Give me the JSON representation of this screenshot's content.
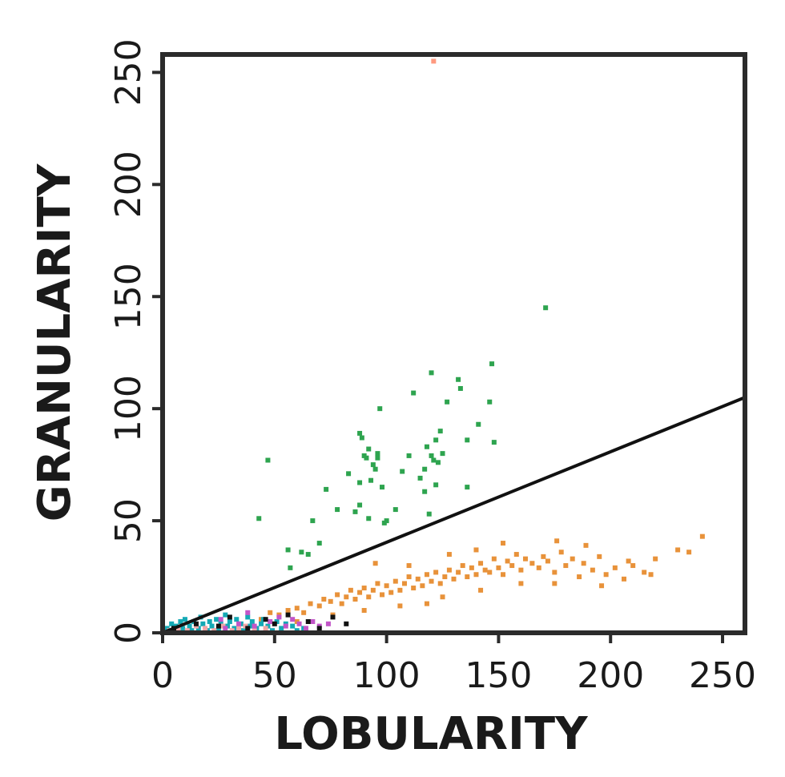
{
  "chart_data": {
    "type": "scatter",
    "title": "",
    "xlabel": "LOBULARITY",
    "ylabel": "GRANULARITY",
    "xlim": [
      0,
      260
    ],
    "ylim": [
      0,
      258
    ],
    "xticks": [
      0,
      50,
      100,
      150,
      200,
      250
    ],
    "yticks": [
      0,
      50,
      100,
      150,
      200,
      250
    ],
    "grid": false,
    "legend": "none",
    "reference_line": {
      "x": [
        0,
        260
      ],
      "y": [
        0,
        105
      ],
      "color": "#111111"
    },
    "series": [
      {
        "color": "#2ea44f",
        "points": [
          [
            47,
            77
          ],
          [
            43,
            51
          ],
          [
            56,
            37
          ],
          [
            57,
            29
          ],
          [
            62,
            36
          ],
          [
            65,
            35
          ],
          [
            67,
            50
          ],
          [
            70,
            40
          ],
          [
            73,
            64
          ],
          [
            78,
            55
          ],
          [
            83,
            71
          ],
          [
            86,
            54
          ],
          [
            88,
            57
          ],
          [
            88,
            67
          ],
          [
            88,
            89
          ],
          [
            89,
            87
          ],
          [
            90,
            79
          ],
          [
            91,
            78
          ],
          [
            92,
            51
          ],
          [
            92,
            82
          ],
          [
            93,
            68
          ],
          [
            94,
            75
          ],
          [
            95,
            73
          ],
          [
            96,
            78
          ],
          [
            96,
            80
          ],
          [
            97,
            100
          ],
          [
            98,
            65
          ],
          [
            99,
            49
          ],
          [
            100,
            50
          ],
          [
            104,
            55
          ],
          [
            107,
            72
          ],
          [
            110,
            79
          ],
          [
            112,
            107
          ],
          [
            115,
            69
          ],
          [
            117,
            63
          ],
          [
            117,
            73
          ],
          [
            118,
            83
          ],
          [
            119,
            53
          ],
          [
            120,
            116
          ],
          [
            120,
            79
          ],
          [
            121,
            77
          ],
          [
            122,
            86
          ],
          [
            122,
            66
          ],
          [
            123,
            76
          ],
          [
            124,
            90
          ],
          [
            125,
            80
          ],
          [
            127,
            103
          ],
          [
            132,
            113
          ],
          [
            133,
            109
          ],
          [
            136,
            86
          ],
          [
            136,
            65
          ],
          [
            141,
            93
          ],
          [
            146,
            103
          ],
          [
            147,
            120
          ],
          [
            148,
            85
          ],
          [
            171,
            145
          ]
        ]
      },
      {
        "color": "#ff9a80",
        "points": [
          [
            121,
            255
          ]
        ]
      },
      {
        "color": "#e8923a",
        "points": [
          [
            44,
            6
          ],
          [
            48,
            9
          ],
          [
            52,
            8
          ],
          [
            56,
            10
          ],
          [
            60,
            11
          ],
          [
            63,
            9
          ],
          [
            66,
            13
          ],
          [
            70,
            12
          ],
          [
            72,
            15
          ],
          [
            75,
            14
          ],
          [
            78,
            17
          ],
          [
            80,
            13
          ],
          [
            82,
            16
          ],
          [
            84,
            19
          ],
          [
            86,
            15
          ],
          [
            88,
            18
          ],
          [
            90,
            20
          ],
          [
            92,
            16
          ],
          [
            94,
            19
          ],
          [
            96,
            22
          ],
          [
            98,
            17
          ],
          [
            100,
            21
          ],
          [
            102,
            18
          ],
          [
            104,
            23
          ],
          [
            106,
            19
          ],
          [
            108,
            22
          ],
          [
            110,
            25
          ],
          [
            112,
            20
          ],
          [
            114,
            24
          ],
          [
            116,
            21
          ],
          [
            118,
            26
          ],
          [
            120,
            23
          ],
          [
            122,
            27
          ],
          [
            124,
            22
          ],
          [
            126,
            25
          ],
          [
            128,
            28
          ],
          [
            130,
            24
          ],
          [
            132,
            27
          ],
          [
            134,
            30
          ],
          [
            136,
            25
          ],
          [
            138,
            29
          ],
          [
            140,
            26
          ],
          [
            142,
            31
          ],
          [
            144,
            28
          ],
          [
            146,
            27
          ],
          [
            148,
            33
          ],
          [
            150,
            29
          ],
          [
            152,
            26
          ],
          [
            154,
            32
          ],
          [
            156,
            30
          ],
          [
            158,
            35
          ],
          [
            160,
            28
          ],
          [
            162,
            33
          ],
          [
            165,
            31
          ],
          [
            168,
            29
          ],
          [
            170,
            34
          ],
          [
            172,
            32
          ],
          [
            175,
            27
          ],
          [
            178,
            36
          ],
          [
            180,
            30
          ],
          [
            183,
            33
          ],
          [
            186,
            25
          ],
          [
            188,
            31
          ],
          [
            192,
            28
          ],
          [
            195,
            34
          ],
          [
            198,
            26
          ],
          [
            202,
            29
          ],
          [
            206,
            24
          ],
          [
            210,
            30
          ],
          [
            215,
            27
          ],
          [
            220,
            33
          ],
          [
            230,
            37
          ],
          [
            235,
            36
          ],
          [
            241,
            43
          ],
          [
            152,
            40
          ],
          [
            140,
            37
          ],
          [
            128,
            35
          ],
          [
            110,
            30
          ],
          [
            95,
            31
          ],
          [
            176,
            41
          ],
          [
            189,
            39
          ],
          [
            118,
            13
          ],
          [
            106,
            12
          ],
          [
            90,
            10
          ],
          [
            76,
            8
          ],
          [
            60,
            5
          ],
          [
            125,
            16
          ],
          [
            142,
            19
          ],
          [
            160,
            22
          ],
          [
            175,
            22
          ],
          [
            196,
            21
          ],
          [
            208,
            32
          ],
          [
            218,
            26
          ]
        ]
      },
      {
        "color": "#14a9b5",
        "points": [
          [
            2,
            2
          ],
          [
            4,
            4
          ],
          [
            5,
            1
          ],
          [
            6,
            3
          ],
          [
            8,
            5
          ],
          [
            9,
            2
          ],
          [
            10,
            6
          ],
          [
            12,
            3
          ],
          [
            13,
            1
          ],
          [
            14,
            5
          ],
          [
            16,
            2
          ],
          [
            17,
            7
          ],
          [
            18,
            4
          ],
          [
            20,
            1
          ],
          [
            21,
            5
          ],
          [
            22,
            3
          ],
          [
            24,
            6
          ],
          [
            25,
            2
          ],
          [
            26,
            4
          ],
          [
            28,
            8
          ],
          [
            29,
            3
          ],
          [
            30,
            5
          ],
          [
            32,
            2
          ],
          [
            33,
            6
          ],
          [
            35,
            4
          ],
          [
            36,
            1
          ],
          [
            38,
            7
          ],
          [
            39,
            3
          ],
          [
            40,
            5
          ],
          [
            42,
            2
          ],
          [
            44,
            4
          ],
          [
            45,
            6
          ],
          [
            47,
            3
          ],
          [
            49,
            1
          ],
          [
            51,
            5
          ],
          [
            53,
            2
          ],
          [
            55,
            4
          ],
          [
            58,
            3
          ],
          [
            60,
            1
          ],
          [
            63,
            2
          ]
        ]
      },
      {
        "color": "#f1a7a7",
        "points": [
          [
            3,
            1
          ],
          [
            7,
            2
          ],
          [
            11,
            1
          ],
          [
            15,
            3
          ],
          [
            19,
            2
          ],
          [
            23,
            1
          ],
          [
            27,
            3
          ],
          [
            31,
            1
          ],
          [
            34,
            2
          ],
          [
            37,
            3
          ],
          [
            41,
            1
          ],
          [
            46,
            2
          ]
        ]
      },
      {
        "color": "#c255c8",
        "points": [
          [
            26,
            6
          ],
          [
            28,
            2
          ],
          [
            34,
            4
          ],
          [
            38,
            9
          ],
          [
            41,
            3
          ],
          [
            48,
            5
          ],
          [
            52,
            7
          ],
          [
            55,
            3
          ],
          [
            58,
            6
          ],
          [
            61,
            4
          ],
          [
            64,
            2
          ],
          [
            67,
            5
          ],
          [
            70,
            3
          ],
          [
            74,
            4
          ]
        ]
      },
      {
        "color": "#111111",
        "points": [
          [
            5,
            2
          ],
          [
            15,
            4
          ],
          [
            25,
            3
          ],
          [
            30,
            7
          ],
          [
            38,
            2
          ],
          [
            46,
            6
          ],
          [
            50,
            4
          ],
          [
            56,
            8
          ],
          [
            65,
            5
          ],
          [
            70,
            2
          ],
          [
            76,
            7
          ],
          [
            82,
            4
          ]
        ]
      }
    ]
  }
}
